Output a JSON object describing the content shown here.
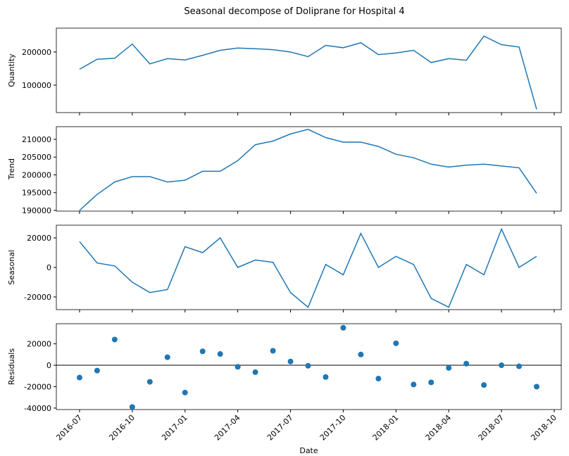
{
  "chart_data": [
    {
      "type": "line",
      "title": "Seasonal decompose of Doliprane for Hospital 4",
      "ylabel": "Quantity",
      "color": "#1f77b4",
      "x": [
        "2016-07",
        "2016-08",
        "2016-09",
        "2016-10",
        "2016-11",
        "2016-12",
        "2017-01",
        "2017-02",
        "2017-03",
        "2017-04",
        "2017-05",
        "2017-06",
        "2017-07",
        "2017-08",
        "2017-09",
        "2017-10",
        "2017-11",
        "2017-12",
        "2018-01",
        "2018-02",
        "2018-03",
        "2018-04",
        "2018-05",
        "2018-06",
        "2018-07",
        "2018-08",
        "2018-09"
      ],
      "values": [
        148000,
        178000,
        181000,
        224000,
        164000,
        180000,
        176000,
        190000,
        205000,
        212000,
        210000,
        207000,
        200000,
        186000,
        220000,
        213000,
        228000,
        192000,
        197000,
        205000,
        168000,
        180000,
        175000,
        248000,
        222000,
        215000,
        27000
      ],
      "ylim": [
        17000,
        272000
      ],
      "yticks": [
        100000,
        200000
      ]
    },
    {
      "type": "line",
      "ylabel": "Trend",
      "color": "#1f77b4",
      "x": [
        "2016-07",
        "2016-08",
        "2016-09",
        "2016-10",
        "2016-11",
        "2016-12",
        "2017-01",
        "2017-02",
        "2017-03",
        "2017-04",
        "2017-05",
        "2017-06",
        "2017-07",
        "2017-08",
        "2017-09",
        "2017-10",
        "2017-11",
        "2017-12",
        "2018-01",
        "2018-02",
        "2018-03",
        "2018-04",
        "2018-05",
        "2018-06",
        "2018-07",
        "2018-08",
        "2018-09"
      ],
      "values": [
        190000,
        194500,
        198000,
        199500,
        199500,
        198000,
        198500,
        201000,
        201000,
        204000,
        208500,
        209500,
        211500,
        212800,
        210500,
        209200,
        209200,
        208000,
        205800,
        204800,
        203000,
        202200,
        202700,
        203000,
        202500,
        202000,
        194800
      ],
      "ylim": [
        189800,
        213560
      ],
      "yticks": [
        190000,
        195000,
        200000,
        205000,
        210000
      ]
    },
    {
      "type": "line",
      "ylabel": "Seasonal",
      "color": "#1f77b4",
      "x": [
        "2016-07",
        "2016-08",
        "2016-09",
        "2016-10",
        "2016-11",
        "2016-12",
        "2017-01",
        "2017-02",
        "2017-03",
        "2017-04",
        "2017-05",
        "2017-06",
        "2017-07",
        "2017-08",
        "2017-09",
        "2017-10",
        "2017-11",
        "2017-12",
        "2018-01",
        "2018-02",
        "2018-03",
        "2018-04",
        "2018-05",
        "2018-06",
        "2018-07",
        "2018-08",
        "2018-09"
      ],
      "values": [
        17500,
        3000,
        1000,
        -10000,
        -17000,
        -15000,
        14000,
        10000,
        20000,
        0,
        5000,
        3500,
        -17000,
        -27000,
        2000,
        -5000,
        23000,
        0,
        7500,
        2000,
        -21000,
        -27000,
        2000,
        -5000,
        26000,
        0,
        7500
      ],
      "ylim": [
        -28600,
        28600
      ],
      "yticks": [
        -20000,
        0,
        20000
      ]
    },
    {
      "type": "scatter",
      "ylabel": "Residuals",
      "xlabel": "Date",
      "color": "#1f77b4",
      "zero_line": 0,
      "x": [
        "2016-07",
        "2016-08",
        "2016-09",
        "2016-10",
        "2016-11",
        "2016-12",
        "2017-01",
        "2017-02",
        "2017-03",
        "2017-04",
        "2017-05",
        "2017-06",
        "2017-07",
        "2017-08",
        "2017-09",
        "2017-10",
        "2017-11",
        "2017-12",
        "2018-01",
        "2018-02",
        "2018-03",
        "2018-04",
        "2018-05",
        "2018-06",
        "2018-07",
        "2018-08",
        "2018-09"
      ],
      "values": [
        -11500,
        -5000,
        24000,
        -39000,
        -15500,
        7500,
        -25500,
        13000,
        10500,
        -1500,
        -6500,
        13500,
        3500,
        -500,
        -11000,
        35000,
        10000,
        -12500,
        20500,
        -18000,
        -16000,
        -2500,
        1500,
        -18500,
        0,
        -1000,
        -20000
      ],
      "ylim": [
        -41400,
        38800
      ],
      "yticks": [
        -40000,
        -20000,
        0,
        20000
      ],
      "xticks": [
        "2016-07",
        "2016-10",
        "2017-01",
        "2017-04",
        "2017-07",
        "2017-10",
        "2018-01",
        "2018-04",
        "2018-07",
        "2018-10"
      ]
    }
  ]
}
